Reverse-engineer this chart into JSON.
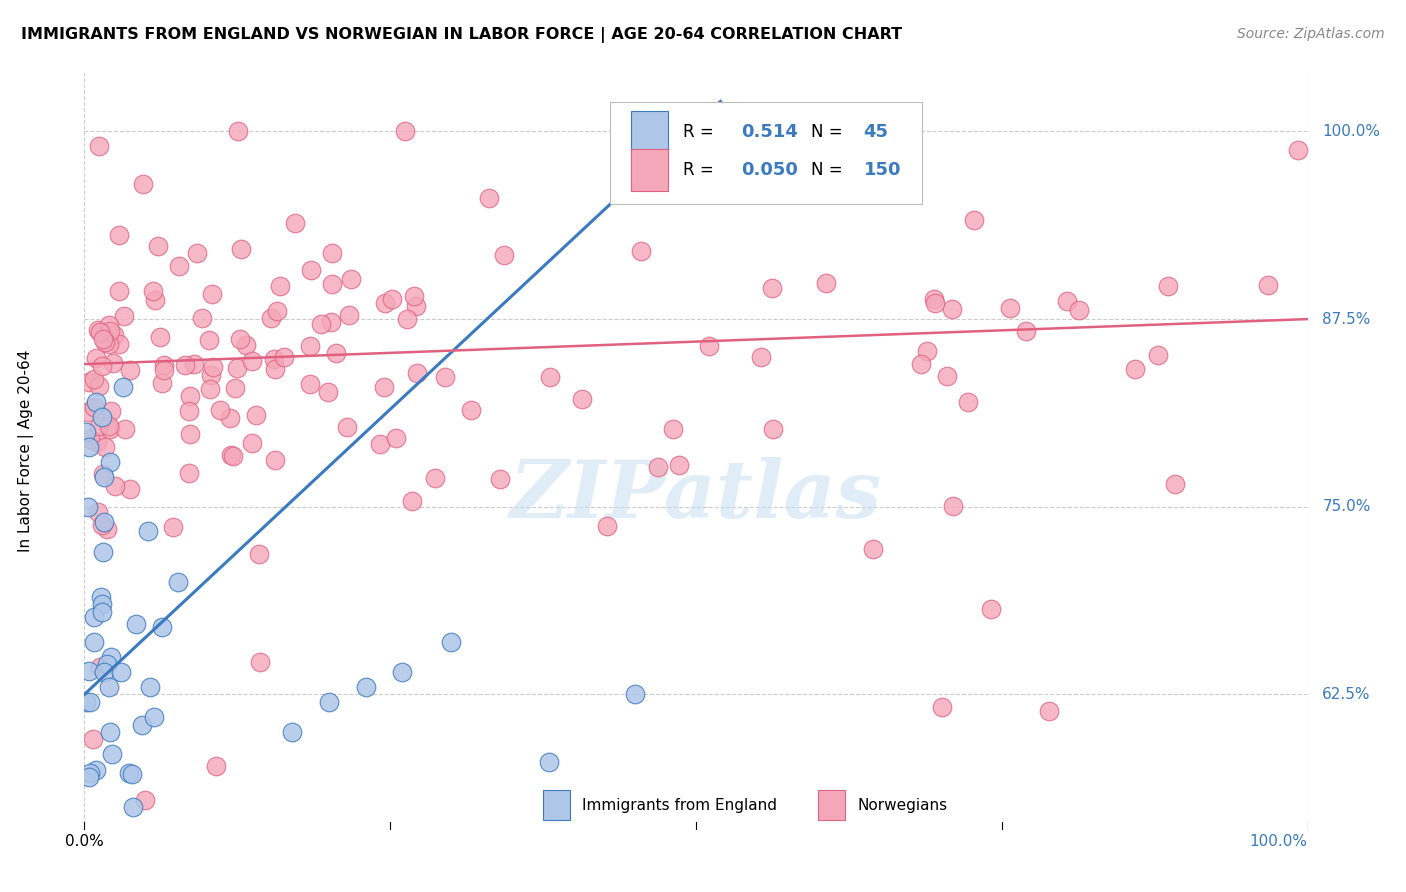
{
  "title": "IMMIGRANTS FROM ENGLAND VS NORWEGIAN IN LABOR FORCE | AGE 20-64 CORRELATION CHART",
  "source": "Source: ZipAtlas.com",
  "ylabel": "In Labor Force | Age 20-64",
  "xlim": [
    0.0,
    1.0
  ],
  "ylim": [
    0.535,
    1.04
  ],
  "ytick_labels": [
    "62.5%",
    "75.0%",
    "87.5%",
    "100.0%"
  ],
  "ytick_positions": [
    0.625,
    0.75,
    0.875,
    1.0
  ],
  "england_R": 0.514,
  "england_N": 45,
  "norwegian_R": 0.05,
  "norwegian_N": 150,
  "england_color": "#aec6e8",
  "norwegian_color": "#f4a7b9",
  "england_line_color": "#3a7abf",
  "norwegian_line_color": "#e06080",
  "watermark": "ZIPatlas",
  "background_color": "#ffffff",
  "grid_color": "#cccccc",
  "england_line_x0": 0.0,
  "england_line_y0": 0.625,
  "england_line_x1": 0.52,
  "england_line_y1": 1.02,
  "norwegian_line_x0": 0.0,
  "norwegian_line_y0": 0.845,
  "norwegian_line_x1": 1.0,
  "norwegian_line_y1": 0.875,
  "legend_R1": "0.514",
  "legend_N1": "45",
  "legend_R2": "0.050",
  "legend_N2": "150"
}
